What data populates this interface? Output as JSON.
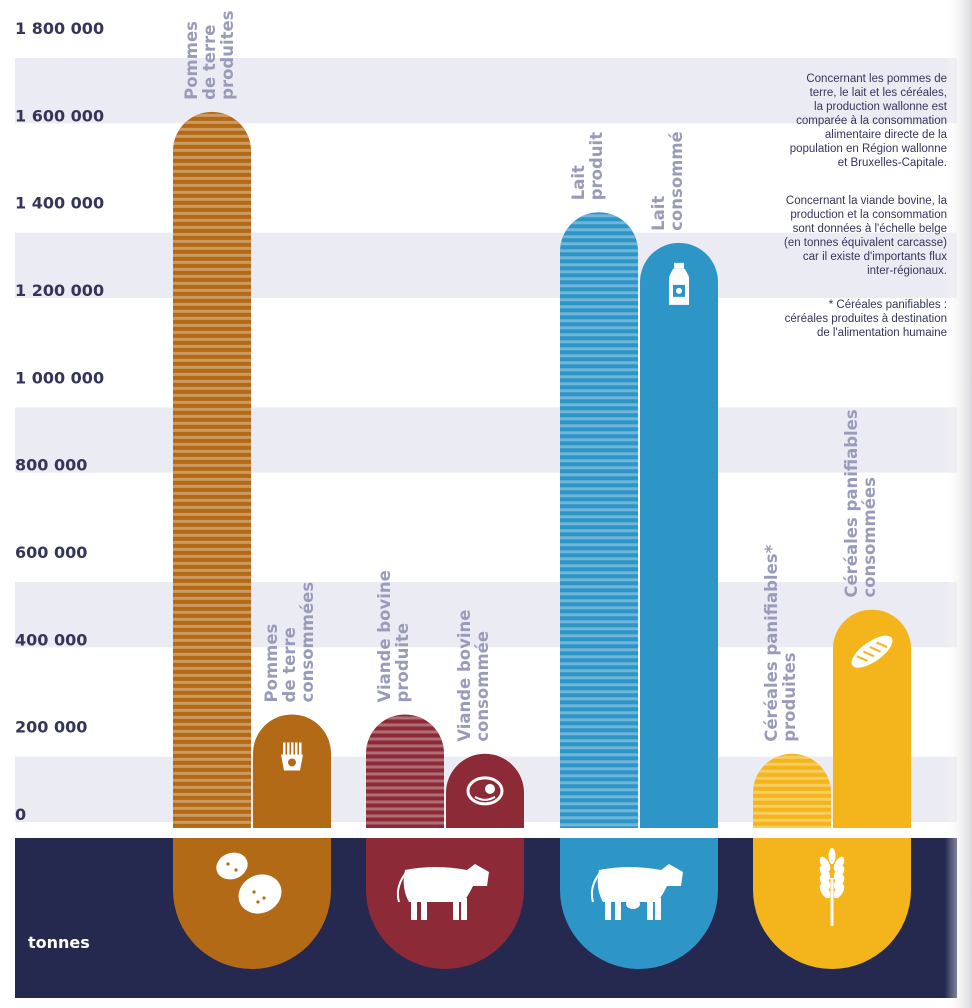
{
  "chart_data": {
    "type": "bar",
    "unit_label": "tonnes",
    "yticks": [
      "0",
      "200 000",
      "400 000",
      "600 000",
      "800 000",
      "1 000 000",
      "1 200 000",
      "1 400 000",
      "1 600 000",
      "1 800 000"
    ],
    "ylim": [
      0,
      1800000
    ],
    "groups": [
      {
        "name": "pommes-de-terre",
        "color": "#b36a17",
        "icon": "potatoes-icon",
        "bars": [
          {
            "label": [
              "Pommes",
              "de terre",
              "produites"
            ],
            "value": 1640000,
            "style": "produced",
            "icon": null
          },
          {
            "label": [
              "Pommes",
              "de terre",
              "consommées"
            ],
            "value": 260000,
            "style": "consumed",
            "icon": "fries-icon"
          }
        ]
      },
      {
        "name": "viande-bovine",
        "color": "#8c2a38",
        "icon": "beef-cow-icon",
        "bars": [
          {
            "label": [
              "Viande bovine",
              "produite"
            ],
            "value": 260000,
            "style": "produced",
            "icon": null
          },
          {
            "label": [
              "Viande bovine",
              "consommée"
            ],
            "value": 170000,
            "style": "consumed",
            "icon": "meat-icon"
          }
        ]
      },
      {
        "name": "lait",
        "color": "#2e95c7",
        "icon": "dairy-cow-icon",
        "bars": [
          {
            "label": [
              "Lait",
              "produit"
            ],
            "value": 1410000,
            "style": "produced",
            "icon": null
          },
          {
            "label": [
              "Lait",
              "consommé"
            ],
            "value": 1340000,
            "style": "consumed",
            "icon": "milk-bottle-icon"
          }
        ]
      },
      {
        "name": "cereales",
        "color": "#f3b51b",
        "icon": "wheat-icon",
        "bars": [
          {
            "label": [
              "Céréales panifiables*",
              "produites"
            ],
            "value": 170000,
            "style": "produced",
            "icon": null
          },
          {
            "label": [
              "Céréales panifiables",
              "consommées"
            ],
            "value": 500000,
            "style": "consumed",
            "icon": "bread-icon"
          }
        ]
      }
    ],
    "grid": "alternating-bands",
    "legend": "none"
  },
  "notes": [
    [
      "Concernant les pommes de",
      "terre, le lait et les céréales,",
      "la production wallonne est",
      "comparée à la consommation",
      "alimentaire directe de la",
      "population en Région wallonne",
      "et Bruxelles-Capitale."
    ],
    [
      "Concernant la viande bovine, la",
      "production et la consommation",
      "sont données à l'échelle belge",
      "(en tonnes équivalent carcasse)",
      "car il existe d'importants flux",
      "inter-régionaux."
    ],
    [
      "* Céréales panifiables :",
      "céréales produites à destination",
      "de l'alimentation humaine"
    ]
  ],
  "colors": {
    "navy": "#25294f",
    "band": "#ebebf3",
    "label_gray": "#9a9bbb"
  }
}
